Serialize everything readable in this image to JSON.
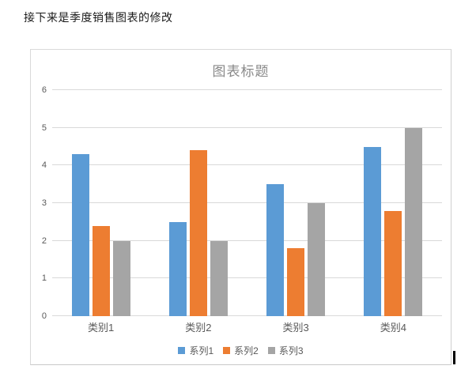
{
  "document": {
    "paragraph_text": "接下来是季度销售图表的修改"
  },
  "chart_data": {
    "type": "bar",
    "title": "图表标题",
    "categories": [
      "类别1",
      "类别2",
      "类别3",
      "类别4"
    ],
    "series": [
      {
        "name": "系列1",
        "color": "#5B9BD5",
        "values": [
          4.3,
          2.5,
          3.5,
          4.5
        ]
      },
      {
        "name": "系列2",
        "color": "#ED7D31",
        "values": [
          2.4,
          4.4,
          1.8,
          2.8
        ]
      },
      {
        "name": "系列3",
        "color": "#A5A5A5",
        "values": [
          2.0,
          2.0,
          3.0,
          5.0
        ]
      }
    ],
    "ylim": [
      0,
      6
    ],
    "yticks": [
      0,
      1,
      2,
      3,
      4,
      5,
      6
    ],
    "grid": true,
    "legend_position": "bottom",
    "xlabel": "",
    "ylabel": ""
  },
  "colors": {
    "gridline": "#d9d9d9",
    "axis_text": "#595959",
    "title_text": "#898989",
    "frame_border": "#d9d9d9"
  }
}
